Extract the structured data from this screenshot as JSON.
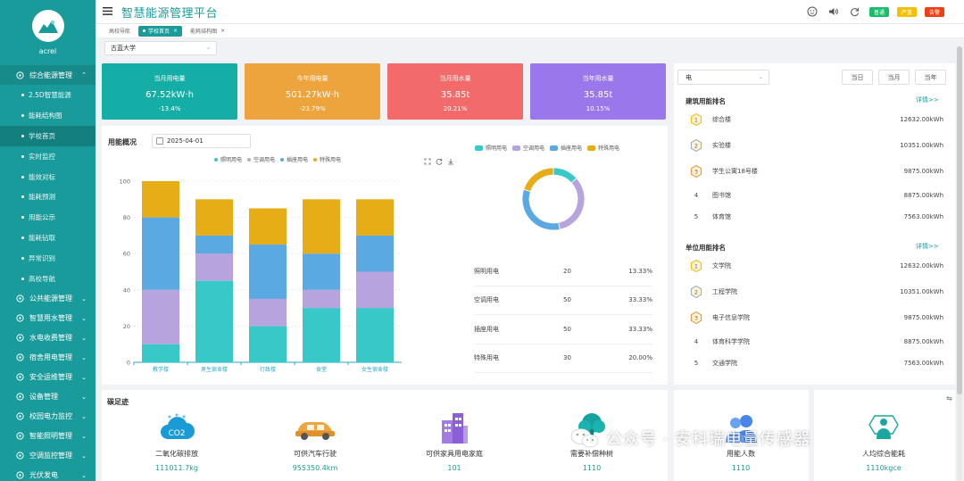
{
  "sidebar": {
    "logo_text": "acrel",
    "groups": [
      {
        "label": "综合能源管理",
        "active": true
      },
      {
        "label": "公共能源管理"
      },
      {
        "label": "智慧用水管理"
      },
      {
        "label": "水电收费管理"
      },
      {
        "label": "宿舍用电管理"
      },
      {
        "label": "安全运维管理"
      },
      {
        "label": "设备管理"
      },
      {
        "label": "校园电力监控"
      },
      {
        "label": "智能照明管理"
      },
      {
        "label": "空调监控管理"
      },
      {
        "label": "光伏发电"
      }
    ],
    "sub_items": [
      {
        "label": "2.5D智慧能源"
      },
      {
        "label": "能耗结构图"
      },
      {
        "label": "学校首页",
        "active": true
      },
      {
        "label": "实时监控"
      },
      {
        "label": "能效对标"
      },
      {
        "label": "能耗预测"
      },
      {
        "label": "用能公示"
      },
      {
        "label": "能耗钻取"
      },
      {
        "label": "异常识别"
      },
      {
        "label": "高校导航"
      }
    ]
  },
  "header": {
    "title": "智慧能源管理平台",
    "buttons": [
      {
        "label": "普通",
        "color": "#19be6b"
      },
      {
        "label": "严重",
        "color": "#f5c000"
      },
      {
        "label": "告警",
        "color": "#ed4014"
      }
    ]
  },
  "tabs": [
    {
      "label": "高校导航"
    },
    {
      "label": "学校首页",
      "active": true
    },
    {
      "label": "能耗结构图"
    }
  ],
  "school_select": {
    "value": "古蓝大学"
  },
  "kpis": [
    {
      "label": "当月用电量",
      "value": "67.52kW·h",
      "pct": "-13.4%",
      "color": "#15aea6"
    },
    {
      "label": "今年用电量",
      "value": "501.27kW·h",
      "pct": "-23.79%",
      "color": "#eda43c"
    },
    {
      "label": "当月用水量",
      "value": "35.85t",
      "pct": "20.21%",
      "color": "#f26a6a"
    },
    {
      "label": "当年用水量",
      "value": "35.85t",
      "pct": "10.15%",
      "color": "#9b77ec"
    }
  ],
  "usage": {
    "title": "用能概况",
    "date": "2025-04-01"
  },
  "chart_data": [
    {
      "type": "bar",
      "stacked": true,
      "categories": [
        "教学楼",
        "男生宿舍楼",
        "行政楼",
        "食堂",
        "女生宿舍楼"
      ],
      "series": [
        {
          "name": "照明用电",
          "values": [
            10,
            45,
            20,
            30,
            30
          ],
          "color": "#38c8c8"
        },
        {
          "name": "空调用电",
          "values": [
            30,
            15,
            15,
            10,
            20
          ],
          "color": "#b7a3dd"
        },
        {
          "name": "插座用电",
          "values": [
            40,
            10,
            30,
            20,
            20
          ],
          "color": "#5aa9e3"
        },
        {
          "name": "特殊用电",
          "values": [
            20,
            20,
            20,
            30,
            20
          ],
          "color": "#e7ad16"
        }
      ],
      "ylim": [
        0,
        100
      ],
      "yticks": [
        0,
        20,
        40,
        60,
        80,
        100
      ],
      "legend": "top-center",
      "grid": true
    },
    {
      "type": "pie",
      "donut": true,
      "slices": [
        {
          "name": "照明用电",
          "value": 20,
          "pct": "13.33%",
          "color": "#38c8c8"
        },
        {
          "name": "空调用电",
          "value": 50,
          "pct": "33.33%",
          "color": "#b7a3dd"
        },
        {
          "name": "插座用电",
          "value": 50,
          "pct": "33.33%",
          "color": "#5aa9e3"
        },
        {
          "name": "特殊用电",
          "value": 30,
          "pct": "20.00%",
          "color": "#e7ad16"
        }
      ],
      "legend": "top-center"
    }
  ],
  "right": {
    "type_select": "电",
    "period_buttons": [
      "当日",
      "当月",
      "当年"
    ],
    "building_rank": {
      "title": "建筑用能排名",
      "more": "详情>>",
      "rows": [
        {
          "rank": "1",
          "name": "综合楼",
          "value": "12632.00kWh"
        },
        {
          "rank": "2",
          "name": "实验楼",
          "value": "10351.00kWh"
        },
        {
          "rank": "3",
          "name": "学生公寓18号楼",
          "value": "9875.00kWh"
        },
        {
          "rank": "4",
          "name": "图书馆",
          "value": "8875.00kWh"
        },
        {
          "rank": "5",
          "name": "体育馆",
          "value": "7563.00kWh"
        }
      ]
    },
    "unit_rank": {
      "title": "单位用能排名",
      "more": "详情>>",
      "rows": [
        {
          "rank": "1",
          "name": "文学院",
          "value": "12632.00kWh"
        },
        {
          "rank": "2",
          "name": "工程学院",
          "value": "10351.00kWh"
        },
        {
          "rank": "3",
          "name": "电子信息学院",
          "value": "9875.00kWh"
        },
        {
          "rank": "4",
          "name": "体育科学学院",
          "value": "8875.00kWh"
        },
        {
          "rank": "5",
          "name": "交通学院",
          "value": "7563.00kWh"
        }
      ]
    }
  },
  "carbon": {
    "title": "碳足迹",
    "items": [
      {
        "icon": "co2-cloud-icon",
        "label": "二氧化碳排放",
        "value": "111011.7kg"
      },
      {
        "icon": "car-icon",
        "label": "可供汽车行驶",
        "value": "955350.4km"
      },
      {
        "icon": "building-icon",
        "label": "可供家具用电家庭",
        "value": "101"
      },
      {
        "icon": "tree-icon",
        "label": "需要补偿种树",
        "value": "1110"
      },
      {
        "icon": "users-icon",
        "label": "用能人数",
        "value": "1110"
      },
      {
        "icon": "person-energy-icon",
        "label": "人均综合能耗",
        "value": "1110kgce"
      }
    ]
  },
  "watermark": "公众号 · 安科瑞电量传感器"
}
